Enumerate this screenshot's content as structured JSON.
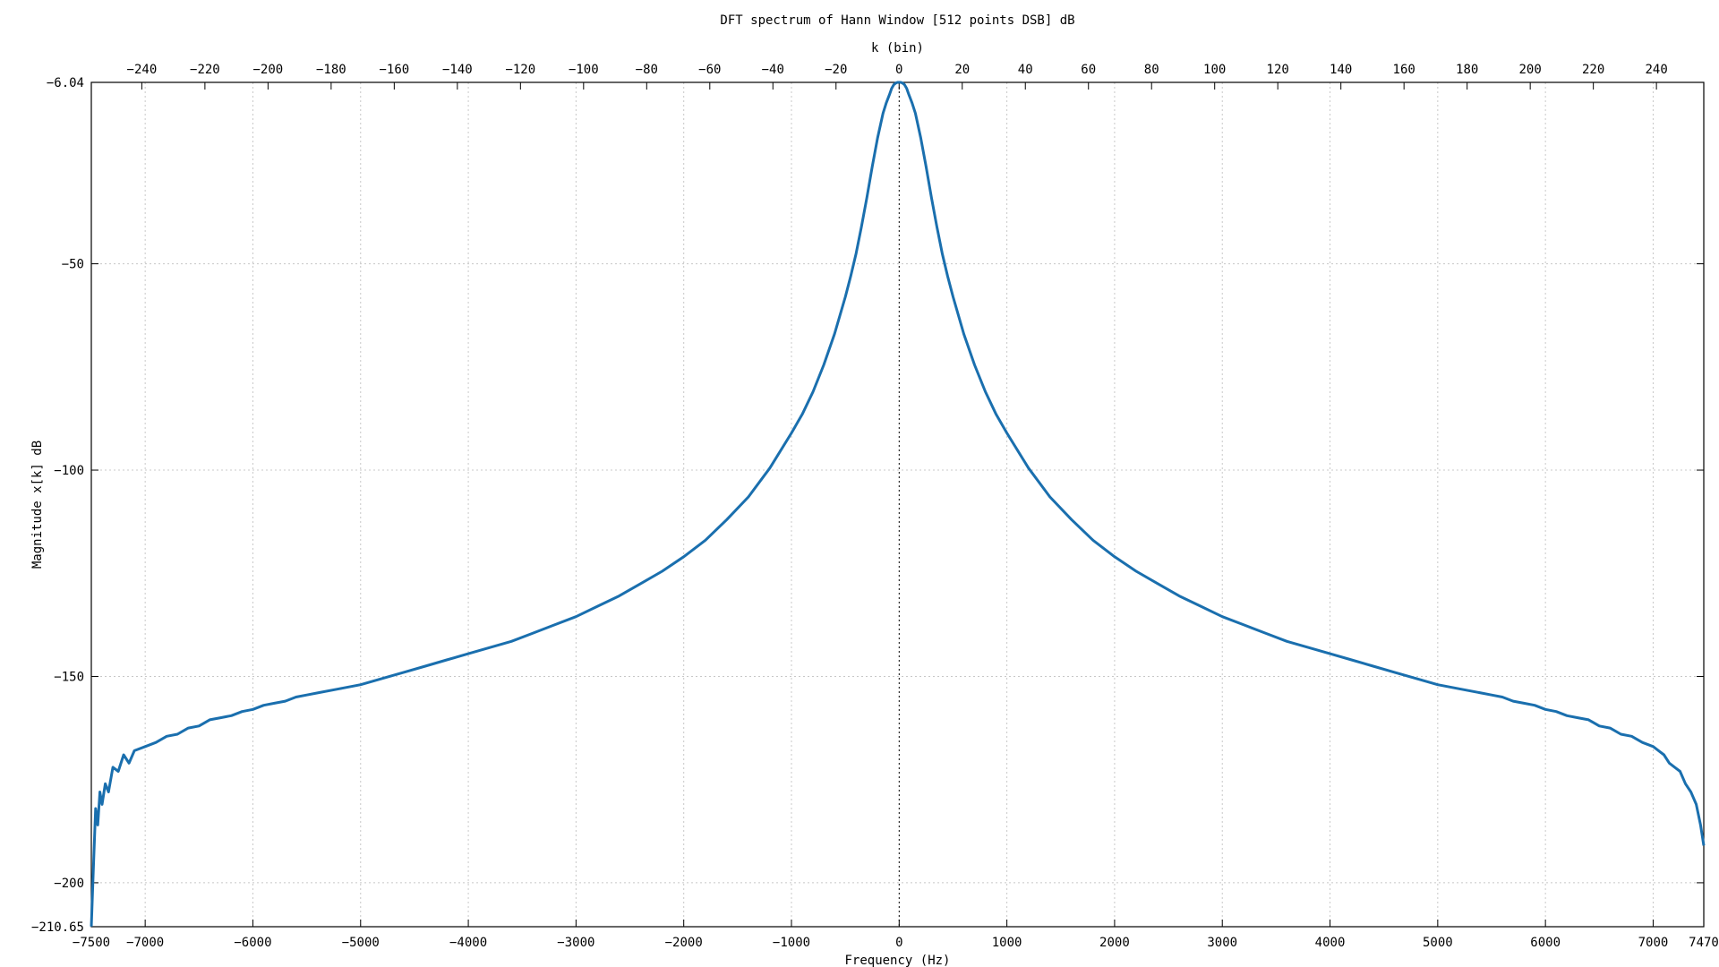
{
  "chart_data": {
    "type": "line",
    "title": "DFT spectrum of Hann Window [512 points DSB] dB",
    "xlabel": "Frequency (Hz)",
    "x2label": "k (bin)",
    "ylabel": "Magnitude x[k] dB",
    "xlim": [
      -7500,
      7470
    ],
    "ylim": [
      -210.65,
      -6.04
    ],
    "x2lim": [
      -256,
      255
    ],
    "x_ticks": [
      -7500,
      -7000,
      -6000,
      -5000,
      -4000,
      -3000,
      -2000,
      -1000,
      0,
      1000,
      2000,
      3000,
      4000,
      5000,
      6000,
      7000,
      7470
    ],
    "x_tick_labels": [
      "−7500",
      "−7000",
      "−6000",
      "−5000",
      "−4000",
      "−3000",
      "−2000",
      "−1000",
      "0",
      "1000",
      "2000",
      "3000",
      "4000",
      "5000",
      "6000",
      "7000",
      "7470"
    ],
    "x2_ticks": [
      -240,
      -220,
      -200,
      -180,
      -160,
      -140,
      -120,
      -100,
      -80,
      -60,
      -40,
      -20,
      0,
      20,
      40,
      60,
      80,
      100,
      120,
      140,
      160,
      180,
      200,
      220,
      240
    ],
    "x2_tick_labels": [
      "−240",
      "−220",
      "−200",
      "−180",
      "−160",
      "−140",
      "−120",
      "−100",
      "−80",
      "−60",
      "−40",
      "−20",
      "0",
      "20",
      "40",
      "60",
      "80",
      "100",
      "120",
      "140",
      "160",
      "180",
      "200",
      "220",
      "240"
    ],
    "y_ticks": [
      -6.04,
      -50,
      -100,
      -150,
      -200,
      -210.65
    ],
    "y_tick_labels": [
      "−6.04",
      "−50",
      "−100",
      "−150",
      "−200",
      "−210.65"
    ],
    "grid": true,
    "zero_line_x": 0,
    "series_color": "#1a6fae",
    "series": [
      {
        "x": [
          -7500,
          -7480,
          -7460,
          -7440,
          -7420,
          -7400,
          -7370,
          -7340,
          -7300,
          -7250,
          -7200,
          -7150,
          -7100,
          -7000,
          -6900,
          -6800,
          -6700,
          -6600,
          -6500,
          -6400,
          -6300,
          -6200,
          -6100,
          -6000,
          -5900,
          -5800,
          -5700,
          -5600,
          -5500,
          -5400,
          -5200,
          -5000,
          -4800,
          -4600,
          -4400,
          -4200,
          -4000,
          -3800,
          -3600,
          -3400,
          -3200,
          -3000,
          -2800,
          -2600,
          -2400,
          -2200,
          -2000,
          -1800,
          -1600,
          -1400,
          -1200,
          -1000,
          -900,
          -800,
          -700,
          -600,
          -500,
          -450,
          -400,
          -350,
          -300,
          -250,
          -200,
          -150,
          -120,
          -90,
          -70,
          -50,
          -30,
          -15,
          0,
          15,
          30,
          50,
          70,
          90,
          120,
          150,
          200,
          250,
          300,
          350,
          400,
          450,
          500,
          600,
          700,
          800,
          900,
          1000,
          1200,
          1400,
          1600,
          1800,
          2000,
          2200,
          2400,
          2600,
          2800,
          3000,
          3200,
          3400,
          3600,
          3800,
          4000,
          4200,
          4400,
          4600,
          4800,
          5000,
          5200,
          5400,
          5500,
          5600,
          5700,
          5800,
          5900,
          6000,
          6100,
          6200,
          6300,
          6400,
          6500,
          6600,
          6700,
          6800,
          6900,
          7000,
          7050,
          7100,
          7150,
          7200,
          7250,
          7300,
          7350,
          7400,
          7440,
          7470
        ],
        "y": [
          -210.6,
          -196,
          -182,
          -186,
          -178,
          -181,
          -176,
          -178,
          -172,
          -173,
          -169,
          -171,
          -168,
          -167,
          -166,
          -164.5,
          -164,
          -162.5,
          -162,
          -160.5,
          -160,
          -159.5,
          -158.5,
          -158,
          -157,
          -156.5,
          -156,
          -155,
          -154.5,
          -154,
          -153,
          -152,
          -150.5,
          -149,
          -147.5,
          -146,
          -144.5,
          -143,
          -141.5,
          -139.5,
          -137.5,
          -135.5,
          -133,
          -130.5,
          -127.5,
          -124.5,
          -121,
          -117,
          -112,
          -106.5,
          -99.5,
          -91,
          -86.5,
          -81,
          -74.5,
          -67,
          -58,
          -53,
          -47.5,
          -41,
          -34,
          -26.5,
          -19.5,
          -13.5,
          -11,
          -9,
          -7.5,
          -6.6,
          -6.2,
          -6.05,
          -6.04,
          -6.05,
          -6.2,
          -6.6,
          -7.5,
          -9,
          -11,
          -13.5,
          -19.5,
          -26.5,
          -34,
          -41,
          -47.5,
          -53,
          -58,
          -67,
          -74.5,
          -81,
          -86.5,
          -91,
          -99.5,
          -106.5,
          -112,
          -117,
          -121,
          -124.5,
          -127.5,
          -130.5,
          -133,
          -135.5,
          -137.5,
          -139.5,
          -141.5,
          -143,
          -144.5,
          -146,
          -147.5,
          -149,
          -150.5,
          -152,
          -153,
          -154,
          -154.5,
          -155,
          -156,
          -156.5,
          -157,
          -158,
          -158.5,
          -159.5,
          -160,
          -160.5,
          -162,
          -162.5,
          -164,
          -164.5,
          -166,
          -167,
          -168,
          -169,
          -171,
          -172,
          -173,
          -176,
          -178,
          -181,
          -186,
          -191
        ]
      }
    ]
  }
}
